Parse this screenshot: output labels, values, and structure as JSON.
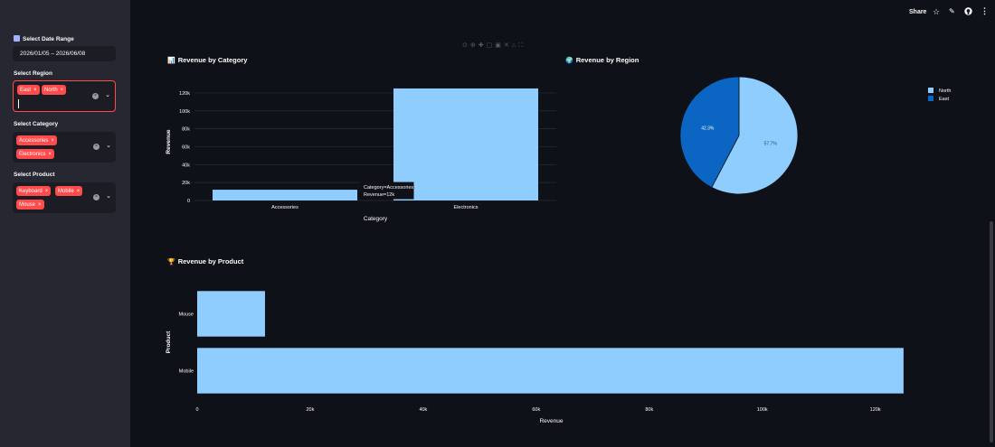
{
  "toolbar": {
    "share": "Share",
    "star_icon": "star-icon",
    "edit_icon": "pencil-icon",
    "github_icon": "github-icon",
    "menu_icon": "more-vertical-icon"
  },
  "sidebar": {
    "date_label": "Select Date Range",
    "date_value": "2026/01/05 – 2026/06/08",
    "region_label": "Select Region",
    "region_selected": [
      "East",
      "North"
    ],
    "category_label": "Select Category",
    "category_selected": [
      "Accessories",
      "Electronics"
    ],
    "product_label": "Select Product",
    "product_selected": [
      "Keyboard",
      "Mobile",
      "Mouse"
    ]
  },
  "category_chart": {
    "emoji": "📊",
    "title": "Revenue by Category",
    "tooltip_line1": "Category=Accessories",
    "tooltip_line2": "Revenue=12k"
  },
  "region_chart": {
    "emoji": "🌍",
    "title": "Revenue by Region"
  },
  "product_chart": {
    "emoji": "🏆",
    "title": "Revenue by Product"
  },
  "colors": {
    "bar": "#8fcdff",
    "pie_north": "#8fcdff",
    "pie_east": "#0a66c2",
    "accent": "#ff4b4b"
  },
  "chart_data": [
    {
      "type": "bar",
      "categories": [
        "Accessories",
        "Electronics"
      ],
      "values": [
        12000,
        125000
      ],
      "xlabel": "Category",
      "ylabel": "Revenue",
      "ylim": [
        0,
        131000
      ],
      "yticks": [
        0,
        20000,
        40000,
        60000,
        80000,
        100000,
        120000
      ],
      "ytick_labels": [
        "0",
        "20k",
        "40k",
        "60k",
        "80k",
        "100k",
        "120k"
      ],
      "grid": true
    },
    {
      "type": "pie",
      "labels": [
        "North",
        "East"
      ],
      "values": [
        57.7,
        42.3
      ],
      "value_labels": [
        "57.7%",
        "42.3%"
      ],
      "legend": "right"
    },
    {
      "type": "bar",
      "orientation": "horizontal",
      "categories": [
        "Mouse",
        "Mobile"
      ],
      "values": [
        12000,
        125000
      ],
      "xlabel": "Revenue",
      "ylabel": "Product",
      "xlim": [
        0,
        129500
      ],
      "xticks": [
        0,
        20000,
        40000,
        60000,
        80000,
        100000,
        120000
      ],
      "xtick_labels": [
        "0",
        "20k",
        "40k",
        "60k",
        "80k",
        "100k",
        "120k"
      ]
    }
  ]
}
